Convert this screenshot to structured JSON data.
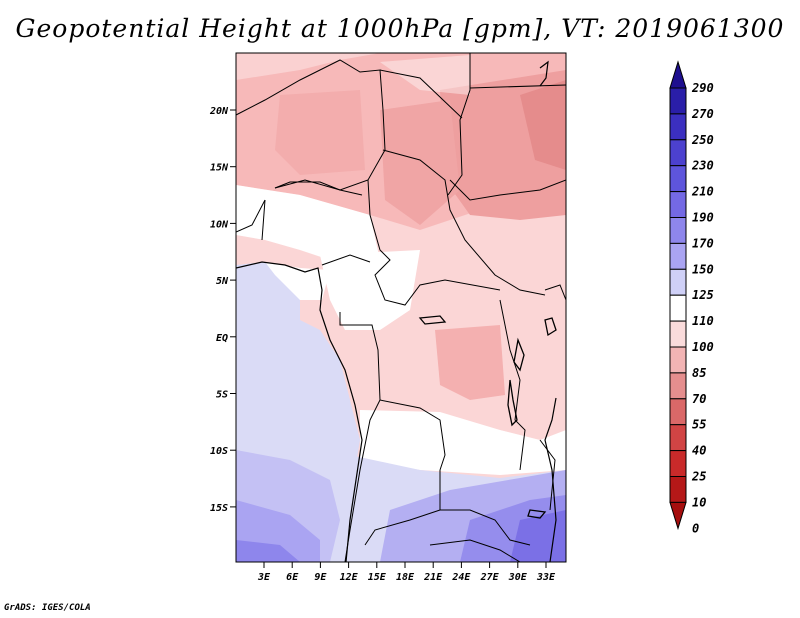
{
  "title": "Geopotential Height at 1000hPa [gpm], VT: 2019061300",
  "credit": "GrADS: IGES/COLA",
  "map": {
    "lat_ticks": [
      "20N",
      "15N",
      "10N",
      "5N",
      "EQ",
      "5S",
      "10S",
      "15S"
    ],
    "lon_ticks": [
      "3E",
      "6E",
      "9E",
      "12E",
      "15E",
      "18E",
      "21E",
      "24E",
      "27E",
      "30E",
      "33E"
    ]
  },
  "colorbar": {
    "levels": [
      "290",
      "270",
      "250",
      "230",
      "210",
      "190",
      "170",
      "150",
      "125",
      "110",
      "100",
      "85",
      "70",
      "55",
      "40",
      "25",
      "10",
      "0"
    ],
    "colors": [
      "#1e0f8f",
      "#2a1ea8",
      "#3b2fc0",
      "#4c41cf",
      "#5e55dc",
      "#7469e4",
      "#8e86ec",
      "#aaa4f2",
      "#cfd0f7",
      "#ffffff",
      "#fadbdb",
      "#f2b4b4",
      "#e58e8e",
      "#da6868",
      "#d14444",
      "#c92a2a",
      "#b51818",
      "#a60e0e"
    ]
  }
}
